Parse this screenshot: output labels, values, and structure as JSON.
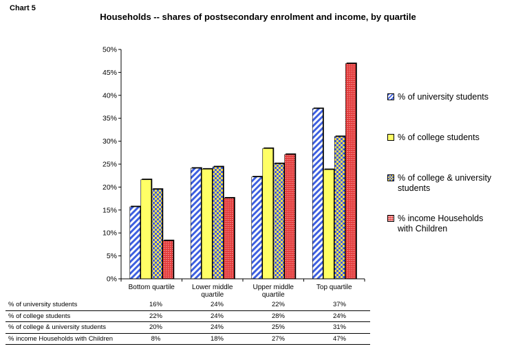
{
  "chart_label": "Chart 5",
  "chart_data": {
    "type": "bar",
    "title": "Households -- shares of postsecondary enrolment and income, by quartile",
    "categories": [
      "Bottom quartile",
      "Lower middle quartile",
      "Upper middle quartile",
      "Top quartile"
    ],
    "tick_labels": [
      [
        "Bottom quartile"
      ],
      [
        "Lower middle",
        "quartile"
      ],
      [
        "Upper middle",
        "quartile"
      ],
      [
        "Top quartile"
      ]
    ],
    "series": [
      {
        "name": "% of university students",
        "values": [
          15.7,
          24.1,
          22.2,
          37.1
        ],
        "table": [
          "16%",
          "24%",
          "22%",
          "37%"
        ],
        "color": "#3d5fe0",
        "pattern": "diagonal-stripes"
      },
      {
        "name": "% of college students",
        "values": [
          21.6,
          23.9,
          28.4,
          23.8
        ],
        "table": [
          "22%",
          "24%",
          "28%",
          "24%"
        ],
        "color": "#ffff66",
        "pattern": "solid"
      },
      {
        "name": "% of college & university students",
        "values": [
          19.5,
          24.4,
          25.1,
          31.0
        ],
        "table": [
          "20%",
          "24%",
          "25%",
          "31%"
        ],
        "color": "#3d5fe0",
        "pattern": "checker"
      },
      {
        "name": "% income Households with Children",
        "values": [
          8.3,
          17.6,
          27.1,
          46.9
        ],
        "table": [
          "8%",
          "18%",
          "27%",
          "47%"
        ],
        "color": "#e23b3b",
        "pattern": "dots"
      }
    ],
    "legend_labels": [
      [
        "% of university students"
      ],
      [
        "% of college students"
      ],
      [
        "% of college & university",
        "students"
      ],
      [
        "% income Households",
        "with Children"
      ]
    ],
    "ylim": [
      0,
      50
    ],
    "yticks": [
      "0%",
      "5%",
      "10%",
      "15%",
      "20%",
      "25%",
      "30%",
      "35%",
      "40%",
      "45%",
      "50%"
    ],
    "xlabel": "",
    "ylabel": "",
    "legend_position": "right",
    "grid": false
  }
}
